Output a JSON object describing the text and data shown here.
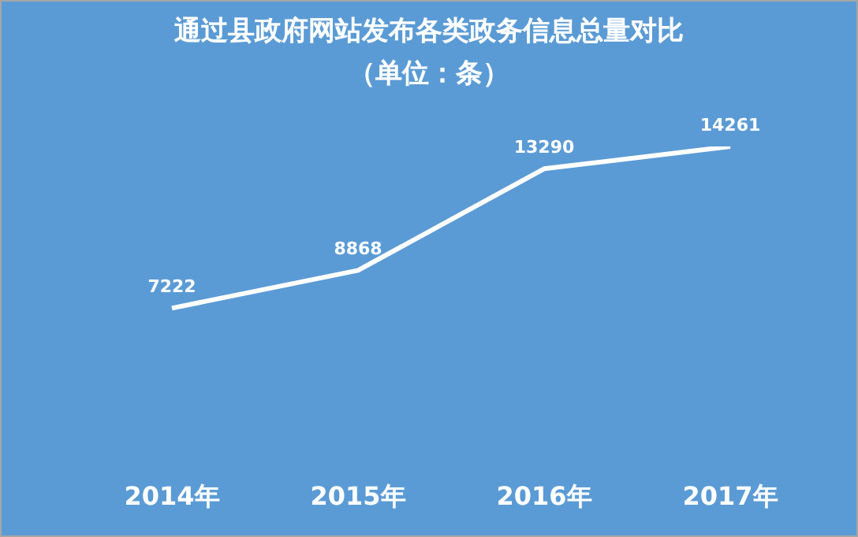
{
  "chart_data": {
    "type": "line",
    "title": "通过县政府网站发布各类政务信息总量对比",
    "subtitle": "（单位：条）",
    "categories": [
      "2014年",
      "2015年",
      "2016年",
      "2017年"
    ],
    "series": [
      {
        "color": "#ffffff",
        "values": [
          7222,
          8868,
          13290,
          14261
        ]
      }
    ],
    "data_labels": true,
    "marker": "none",
    "grid": false,
    "legend": false
  }
}
